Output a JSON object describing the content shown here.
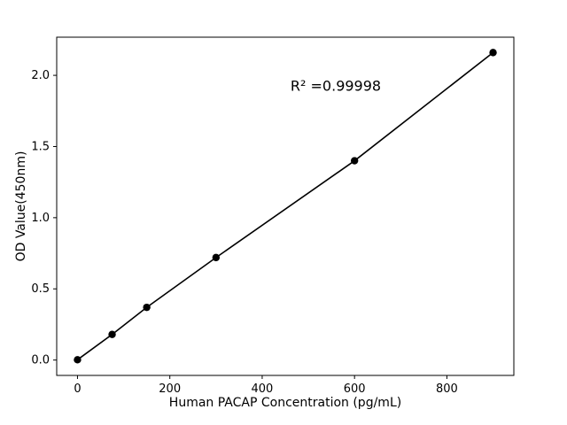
{
  "chart_data": {
    "type": "scatter",
    "title": "",
    "xlabel": "Human PACAP Concentration (pg/mL)",
    "ylabel": "OD Value(450nm)",
    "x": [
      0,
      75,
      150,
      300,
      600,
      900
    ],
    "y": [
      0.002,
      0.18,
      0.37,
      0.72,
      1.4,
      2.16
    ],
    "xlim": [
      -45,
      945
    ],
    "ylim": [
      -0.108,
      2.268
    ],
    "xticks": [
      0,
      200,
      400,
      600,
      800
    ],
    "xtick_labels": [
      "0",
      "200",
      "400",
      "600",
      "800"
    ],
    "yticks": [
      0,
      0.5,
      1.0,
      1.5,
      2.0
    ],
    "ytick_labels": [
      "0.0",
      "0.5",
      "1.0",
      "1.5",
      "2.0"
    ],
    "grid": false,
    "legend": "none",
    "line_color": "#000000",
    "marker_color": "#000000",
    "annotation": {
      "text": "R² =0.99998",
      "x": 560,
      "y": 1.93
    }
  }
}
